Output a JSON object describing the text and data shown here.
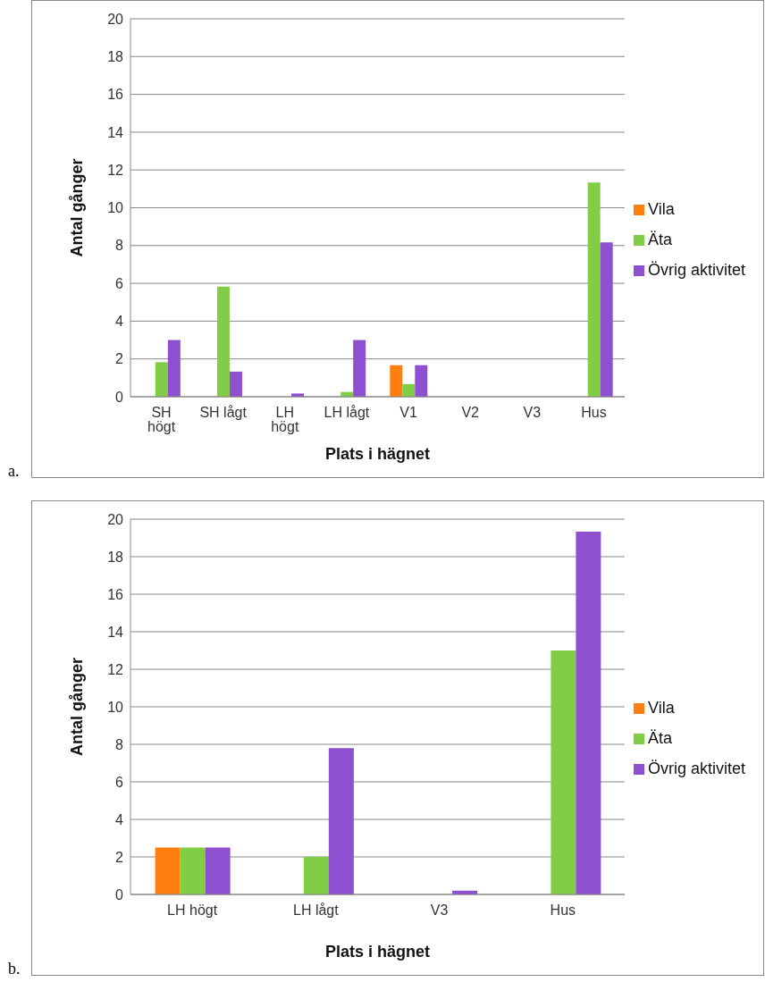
{
  "chart_data": [
    {
      "type": "bar",
      "xlabel": "Plats i hägnet",
      "ylabel": "Antal gånger",
      "categories": [
        "SH högt",
        "SH lågt",
        "LH högt",
        "LH lågt",
        "V1",
        "V2",
        "V3",
        "Hus"
      ],
      "series": [
        {
          "name": "Vila",
          "color": "#ff7f0e",
          "values": [
            0,
            0,
            0,
            0,
            1.67,
            0,
            0,
            0
          ]
        },
        {
          "name": "Äta",
          "color": "#82cd46",
          "values": [
            1.83,
            5.83,
            0,
            0.25,
            0.67,
            0,
            0,
            11.33
          ]
        },
        {
          "name": "Övrig aktivitet",
          "color": "#8e4fd0",
          "values": [
            3,
            1.33,
            0.17,
            3,
            1.67,
            0,
            0,
            8.17
          ]
        }
      ],
      "ylim": [
        0,
        20
      ],
      "yticks": [
        0,
        2,
        4,
        6,
        8,
        10,
        12,
        14,
        16,
        18,
        20
      ],
      "grid": "y",
      "legend": "right",
      "annotations": [
        "a."
      ]
    },
    {
      "type": "bar",
      "xlabel": "Plats i hägnet",
      "ylabel": "Antal gånger",
      "categories": [
        "LH högt",
        "LH lågt",
        "V3",
        "Hus"
      ],
      "series": [
        {
          "name": "Vila",
          "color": "#ff7f0e",
          "values": [
            2.5,
            0,
            0,
            0
          ]
        },
        {
          "name": "Äta",
          "color": "#82cd46",
          "values": [
            2.5,
            2,
            0,
            13
          ]
        },
        {
          "name": "Övrig aktivitet",
          "color": "#8e4fd0",
          "values": [
            2.5,
            7.8,
            0.2,
            19.33
          ]
        }
      ],
      "ylim": [
        0,
        20
      ],
      "yticks": [
        0,
        2,
        4,
        6,
        8,
        10,
        12,
        14,
        16,
        18,
        20
      ],
      "grid": "y",
      "legend": "right",
      "annotations": [
        "b."
      ]
    }
  ]
}
